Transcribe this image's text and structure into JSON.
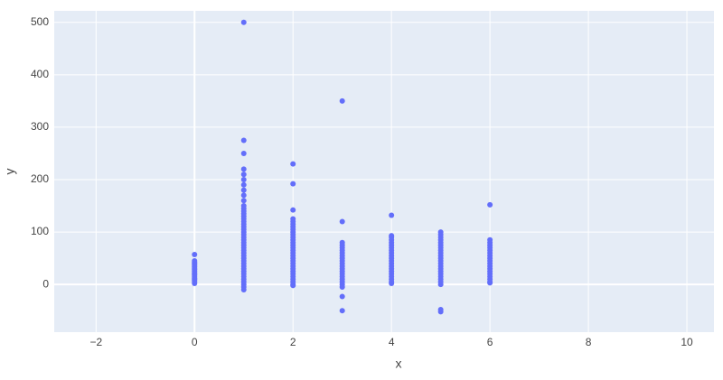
{
  "chart_data": {
    "type": "scatter",
    "x_label": "x",
    "y_label": "y",
    "xlim": [
      -2.85,
      10.55
    ],
    "ylim": [
      -91,
      522
    ],
    "xticks": [
      {
        "value": -2,
        "label": "−2"
      },
      0,
      2,
      4,
      6,
      8,
      10
    ],
    "yticks": [
      0,
      100,
      200,
      300,
      400,
      500
    ],
    "grid": true,
    "series": [
      {
        "color": "#636efa",
        "x": [
          0,
          0,
          0,
          0,
          0,
          0,
          0,
          0,
          0,
          0,
          0,
          0,
          0,
          0,
          0,
          0,
          0,
          0,
          0,
          1,
          1,
          1,
          1,
          1,
          1,
          1,
          1,
          1,
          1,
          1,
          1,
          1,
          1,
          1,
          1,
          1,
          1,
          1,
          1,
          1,
          1,
          1,
          1,
          1,
          1,
          1,
          1,
          1,
          1,
          1,
          1,
          1,
          1,
          1,
          1,
          1,
          1,
          1,
          1,
          1,
          1,
          1,
          2,
          2,
          2,
          2,
          2,
          2,
          2,
          2,
          2,
          2,
          2,
          2,
          2,
          2,
          2,
          2,
          2,
          2,
          2,
          2,
          2,
          2,
          2,
          2,
          2,
          2,
          2,
          2,
          2,
          2,
          3,
          3,
          3,
          3,
          3,
          3,
          3,
          3,
          3,
          3,
          3,
          3,
          3,
          3,
          3,
          3,
          3,
          3,
          3,
          3,
          3,
          3,
          4,
          4,
          4,
          4,
          4,
          4,
          4,
          4,
          4,
          4,
          4,
          4,
          4,
          4,
          4,
          4,
          4,
          4,
          4,
          4,
          4,
          5,
          5,
          5,
          5,
          5,
          5,
          5,
          5,
          5,
          5,
          5,
          5,
          5,
          5,
          5,
          5,
          5,
          5,
          5,
          5,
          5,
          5,
          5,
          6,
          6,
          6,
          6,
          6,
          6,
          6,
          6,
          6,
          6,
          6,
          6,
          6,
          6,
          6,
          6,
          6,
          6,
          6
        ],
        "values": [
          2,
          5,
          8,
          10,
          12,
          15,
          18,
          20,
          22,
          25,
          28,
          30,
          33,
          35,
          38,
          40,
          42,
          45,
          57,
          -10,
          -5,
          0,
          5,
          10,
          15,
          20,
          25,
          30,
          35,
          40,
          45,
          50,
          55,
          60,
          65,
          70,
          75,
          80,
          85,
          90,
          95,
          100,
          105,
          110,
          115,
          120,
          125,
          130,
          135,
          140,
          145,
          150,
          160,
          170,
          180,
          190,
          200,
          210,
          220,
          250,
          275,
          500,
          -2,
          0,
          5,
          10,
          15,
          20,
          25,
          30,
          35,
          40,
          45,
          50,
          55,
          60,
          65,
          70,
          75,
          80,
          85,
          90,
          95,
          100,
          105,
          110,
          115,
          120,
          125,
          142,
          192,
          230,
          -50,
          -23,
          -5,
          0,
          5,
          10,
          15,
          20,
          25,
          30,
          35,
          40,
          45,
          50,
          55,
          60,
          65,
          70,
          75,
          80,
          120,
          350,
          2,
          5,
          10,
          15,
          20,
          25,
          30,
          35,
          40,
          45,
          50,
          55,
          60,
          65,
          70,
          75,
          80,
          85,
          90,
          93,
          132,
          -52,
          -48,
          0,
          5,
          10,
          15,
          20,
          25,
          30,
          35,
          40,
          45,
          50,
          55,
          60,
          65,
          70,
          75,
          80,
          85,
          90,
          95,
          100,
          3,
          5,
          10,
          15,
          20,
          25,
          30,
          35,
          40,
          45,
          50,
          55,
          60,
          65,
          70,
          75,
          80,
          85,
          152
        ]
      }
    ]
  }
}
